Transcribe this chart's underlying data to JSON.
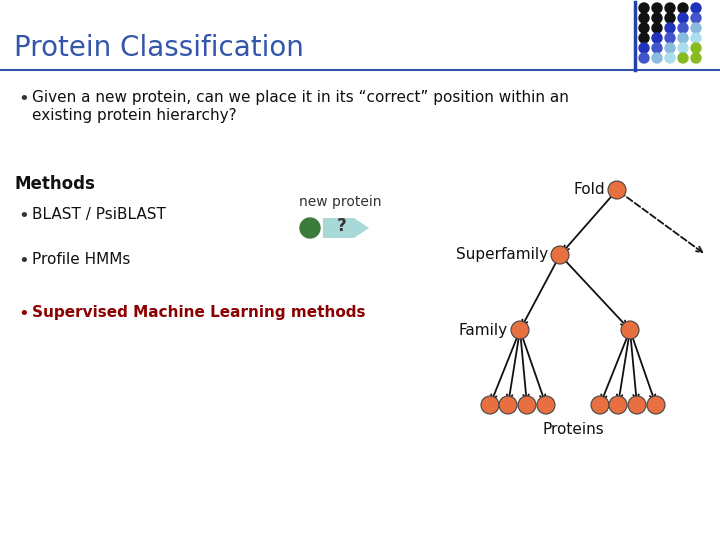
{
  "title": "Protein Classification",
  "title_color": "#3355aa",
  "title_fontsize": 20,
  "bg_color": "#ffffff",
  "line_color": "#3355aa",
  "bullet1_line1": "Given a new protein, can we place it in its “correct” position within an",
  "bullet1_line2": "existing protein hierarchy?",
  "methods_label": "Methods",
  "bullet2_text": "BLAST / PsiBLAST",
  "bullet3": "Profile HMMs",
  "bullet4": "Supervised Machine Learning methods",
  "bullet4_color": "#8b0000",
  "new_protein_label": "new protein",
  "question_mark": "?",
  "node_color": "#e87040",
  "node_outline": "#000000",
  "green_dot_color": "#3a7a3a",
  "arrow_box_color": "#a8d8d8",
  "fold_label": "Fold",
  "superfamily_label": "Superfamily",
  "family_label": "Family",
  "proteins_label": "Proteins",
  "dot_colors_grid": [
    [
      "#111111",
      "#111111",
      "#111111",
      "#111111",
      "#2233bb"
    ],
    [
      "#111111",
      "#111111",
      "#111111",
      "#2233bb",
      "#4455cc"
    ],
    [
      "#111111",
      "#111111",
      "#2233bb",
      "#4455cc",
      "#88bbdd"
    ],
    [
      "#111111",
      "#2233bb",
      "#4455cc",
      "#88bbdd",
      "#aaddee"
    ],
    [
      "#2233bb",
      "#4455cc",
      "#88bbdd",
      "#aaddee",
      "#88bb22"
    ],
    [
      "#4455cc",
      "#88bbdd",
      "#aaddee",
      "#88bb22",
      "#88bb22"
    ]
  ]
}
